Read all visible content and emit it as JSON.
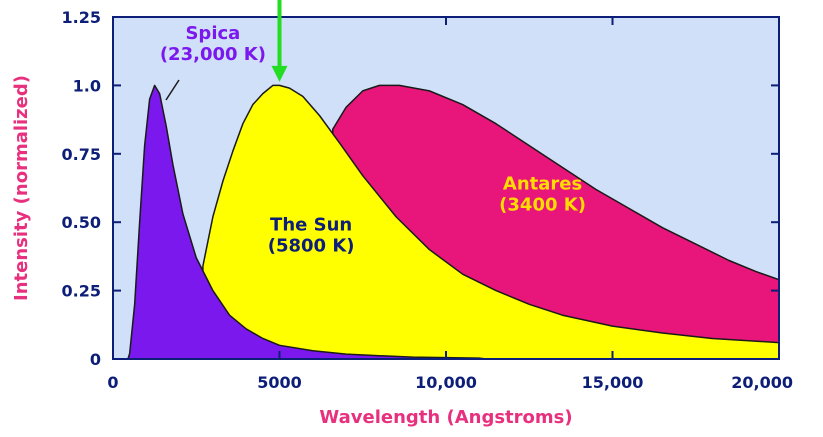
{
  "chart_data": {
    "type": "area",
    "title": "",
    "xlabel": "Wavelength (Angstroms)",
    "ylabel": "Intensity (normalized)",
    "xlim": [
      0,
      20000
    ],
    "ylim": [
      0,
      1.25
    ],
    "x_ticks": [
      {
        "value": 0,
        "label": "0"
      },
      {
        "value": 5000,
        "label": "5000"
      },
      {
        "value": 10000,
        "label": "10,000"
      },
      {
        "value": 15000,
        "label": "15,000"
      },
      {
        "value": 20000,
        "label": "20,000"
      }
    ],
    "y_ticks": [
      {
        "value": 0,
        "label": "0"
      },
      {
        "value": 0.25,
        "label": "0.25"
      },
      {
        "value": 0.5,
        "label": "0.50"
      },
      {
        "value": 0.75,
        "label": "0.75"
      },
      {
        "value": 1.0,
        "label": "1.0"
      },
      {
        "value": 1.25,
        "label": "1.25"
      }
    ],
    "grid": false,
    "background_color": "#cfe0f8",
    "axis_color": "#0c1e78",
    "axis_title_color": "#e8317e",
    "series": [
      {
        "name": "Antares",
        "temperature_label": "(3400 K)",
        "color": "#e8157a",
        "label_color": "#ffdd00",
        "label_at": [
          12900,
          0.62
        ],
        "points": [
          [
            6600,
            0.0
          ],
          [
            6600,
            0.84
          ],
          [
            7000,
            0.92
          ],
          [
            7500,
            0.98
          ],
          [
            8000,
            1.0
          ],
          [
            8600,
            1.0
          ],
          [
            9500,
            0.98
          ],
          [
            10500,
            0.93
          ],
          [
            11500,
            0.86
          ],
          [
            12500,
            0.78
          ],
          [
            13500,
            0.7
          ],
          [
            14500,
            0.62
          ],
          [
            15500,
            0.55
          ],
          [
            16500,
            0.48
          ],
          [
            17500,
            0.42
          ],
          [
            18500,
            0.36
          ],
          [
            19300,
            0.32
          ],
          [
            20000,
            0.29
          ]
        ]
      },
      {
        "name": "The Sun",
        "temperature_label": "(5800 K)",
        "color": "#ffff00",
        "label_color": "#0c1e78",
        "label_at": [
          5950,
          0.47
        ],
        "points": [
          [
            2700,
            0.0
          ],
          [
            2700,
            0.34
          ],
          [
            3000,
            0.52
          ],
          [
            3300,
            0.65
          ],
          [
            3600,
            0.76
          ],
          [
            3900,
            0.86
          ],
          [
            4200,
            0.93
          ],
          [
            4500,
            0.97
          ],
          [
            4800,
            1.0
          ],
          [
            5000,
            1.0
          ],
          [
            5300,
            0.99
          ],
          [
            5700,
            0.96
          ],
          [
            6200,
            0.89
          ],
          [
            6800,
            0.79
          ],
          [
            7500,
            0.67
          ],
          [
            8500,
            0.52
          ],
          [
            9500,
            0.4
          ],
          [
            10500,
            0.31
          ],
          [
            11500,
            0.25
          ],
          [
            12500,
            0.2
          ],
          [
            13500,
            0.16
          ],
          [
            15000,
            0.12
          ],
          [
            16500,
            0.095
          ],
          [
            18000,
            0.075
          ],
          [
            20000,
            0.06
          ]
        ]
      },
      {
        "name": "Spica",
        "temperature_label": "(23,000 K)",
        "color": "#7a18ee",
        "label_color": "#7a18ee",
        "label_at": [
          3000,
          1.17
        ],
        "points": [
          [
            450,
            0.0
          ],
          [
            500,
            0.02
          ],
          [
            650,
            0.2
          ],
          [
            800,
            0.5
          ],
          [
            950,
            0.78
          ],
          [
            1100,
            0.95
          ],
          [
            1250,
            1.0
          ],
          [
            1400,
            0.97
          ],
          [
            1600,
            0.85
          ],
          [
            1800,
            0.71
          ],
          [
            2100,
            0.53
          ],
          [
            2500,
            0.37
          ],
          [
            3000,
            0.25
          ],
          [
            3500,
            0.16
          ],
          [
            4000,
            0.11
          ],
          [
            4500,
            0.075
          ],
          [
            5000,
            0.05
          ],
          [
            6000,
            0.03
          ],
          [
            7000,
            0.018
          ],
          [
            8000,
            0.012
          ],
          [
            9000,
            0.007
          ],
          [
            10000,
            0.005
          ],
          [
            11000,
            0.003
          ],
          [
            11200,
            0.0
          ]
        ]
      }
    ],
    "annotations": [
      {
        "type": "arrow",
        "x": 5000,
        "y_from": 1.45,
        "y_to": 1.02,
        "color": "#22dd22"
      }
    ]
  }
}
